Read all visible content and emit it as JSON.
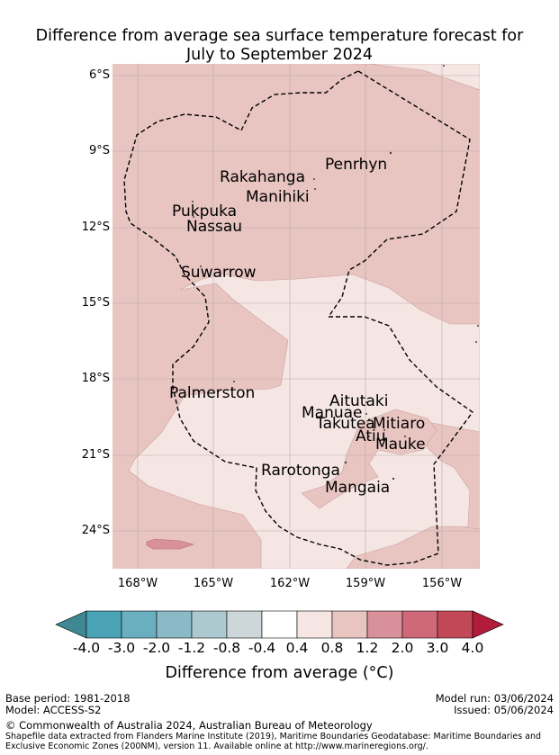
{
  "title": {
    "line1": "Difference from average sea surface temperature forecast for",
    "line2": "July to September 2024"
  },
  "map": {
    "lat_labels": [
      "6°S",
      "9°S",
      "12°S",
      "15°S",
      "18°S",
      "21°S",
      "24°S"
    ],
    "lon_labels": [
      "168°W",
      "165°W",
      "162°W",
      "159°W",
      "156°W"
    ],
    "places": [
      "Penrhyn",
      "Rakahanga",
      "Manihiki",
      "Pukpuka",
      "Nassau",
      "Suwarrow",
      "Palmerston",
      "Aitutaki",
      "Manuae",
      "Takutea",
      "Mitiaro",
      "Atiu",
      "Mauke",
      "Rarotonga",
      "Mangaia"
    ],
    "colors": {
      "very_light_warm": "#f5e6e4",
      "light_warm": "#e8c5c1",
      "medium_warm": "#d8909a",
      "eez_line": "#000000",
      "grid": "#b8a8a6"
    }
  },
  "colorbar": {
    "tick_labels": [
      "-4.0",
      "-3.0",
      "-2.0",
      "-1.2",
      "-0.8",
      "-0.4",
      "0.4",
      "0.8",
      "1.2",
      "2.0",
      "3.0",
      "4.0"
    ],
    "colors": [
      "#3e8793",
      "#4aa4b6",
      "#6aafc0",
      "#8bbac7",
      "#abc9ce",
      "#cdd6d8",
      "#ffffff",
      "#f5e6e4",
      "#e8c5c1",
      "#d8909a",
      "#cf6878",
      "#c24757",
      "#b01c3a"
    ],
    "title": "Difference from average (°C)"
  },
  "footer": {
    "base_period": "Base period: 1981-2018",
    "model": "Model: ACCESS-S2",
    "model_run": "Model run: 03/06/2024",
    "issued": "Issued: 05/06/2024",
    "copyright": "© Commonwealth of Australia 2024, Australian Bureau of Meteorology",
    "shapefile_line1": "Shapefile data extracted from Flanders Marine Institute (2019), Maritime Boundaries Geodatabase: Maritime Boundaries and",
    "shapefile_line2": "Exclusive Economic Zones (200NM), version 11. Available online at http://www.marineregions.org/."
  }
}
